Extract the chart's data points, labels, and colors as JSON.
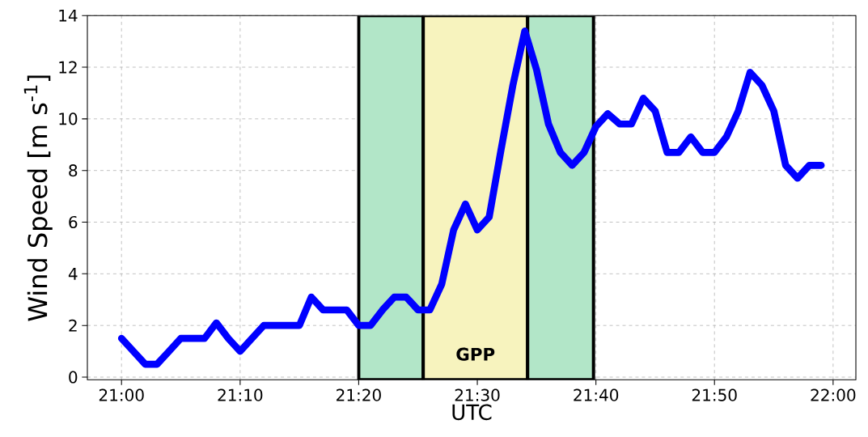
{
  "chart_data": {
    "type": "line",
    "xlabel": "UTC",
    "ylabel": "Wind Speed [m s$^{-1}$]",
    "x": [
      21.0,
      21.0167,
      21.0333,
      21.05,
      21.0667,
      21.0833,
      21.1,
      21.1167,
      21.1333,
      21.15,
      21.1667,
      21.1833,
      21.2,
      21.2167,
      21.2333,
      21.25,
      21.2667,
      21.2833,
      21.3,
      21.3167,
      21.3333,
      21.35,
      21.3667,
      21.3833,
      21.4,
      21.4167,
      21.4333,
      21.45,
      21.4667,
      21.4833,
      21.5,
      21.5167,
      21.5333,
      21.55,
      21.5667,
      21.5833,
      21.6,
      21.6167,
      21.6333,
      21.65,
      21.6667,
      21.6833,
      21.7,
      21.7167,
      21.7333,
      21.75,
      21.7667,
      21.7833,
      21.8,
      21.8167,
      21.8333,
      21.85,
      21.8667,
      21.8833,
      21.9,
      21.9167,
      21.9333,
      21.95,
      21.9667,
      21.9833
    ],
    "values": [
      1.5,
      1.0,
      0.5,
      0.5,
      1.0,
      1.5,
      1.5,
      1.5,
      2.1,
      1.5,
      1.0,
      1.5,
      2.0,
      2.0,
      2.0,
      2.0,
      3.1,
      2.6,
      2.6,
      2.6,
      2.0,
      2.0,
      2.6,
      3.1,
      3.1,
      2.6,
      2.6,
      3.6,
      5.7,
      6.7,
      5.7,
      6.2,
      8.8,
      11.3,
      13.4,
      11.9,
      9.8,
      8.7,
      8.2,
      8.7,
      9.7,
      10.2,
      9.8,
      9.8,
      10.8,
      10.3,
      8.7,
      8.7,
      9.3,
      8.7,
      8.7,
      9.3,
      10.3,
      11.8,
      11.3,
      10.3,
      8.2,
      7.7,
      8.2,
      8.2
    ],
    "color": "#0000ff",
    "xlim": [
      20.952,
      22.032
    ],
    "ylim": [
      -0.1,
      14
    ],
    "xticks": [
      {
        "value": 21.0,
        "label": "21:00"
      },
      {
        "value": 21.1667,
        "label": "21:10"
      },
      {
        "value": 21.3333,
        "label": "21:20"
      },
      {
        "value": 21.5,
        "label": "21:30"
      },
      {
        "value": 21.6667,
        "label": "21:40"
      },
      {
        "value": 21.8333,
        "label": "21:50"
      },
      {
        "value": 22.0,
        "label": "22:00"
      }
    ],
    "yticks": [
      0,
      2,
      4,
      6,
      8,
      10,
      12,
      14
    ],
    "grid": true,
    "bands": [
      {
        "axis": "x",
        "from": 21.3333,
        "to": 21.424,
        "color": "#b2e6c8"
      },
      {
        "axis": "x",
        "from": 21.424,
        "to": 21.5707,
        "color": "#f7f3be",
        "label": "GPP"
      },
      {
        "axis": "x",
        "from": 21.5707,
        "to": 21.6633,
        "color": "#b2e6c8"
      }
    ]
  }
}
